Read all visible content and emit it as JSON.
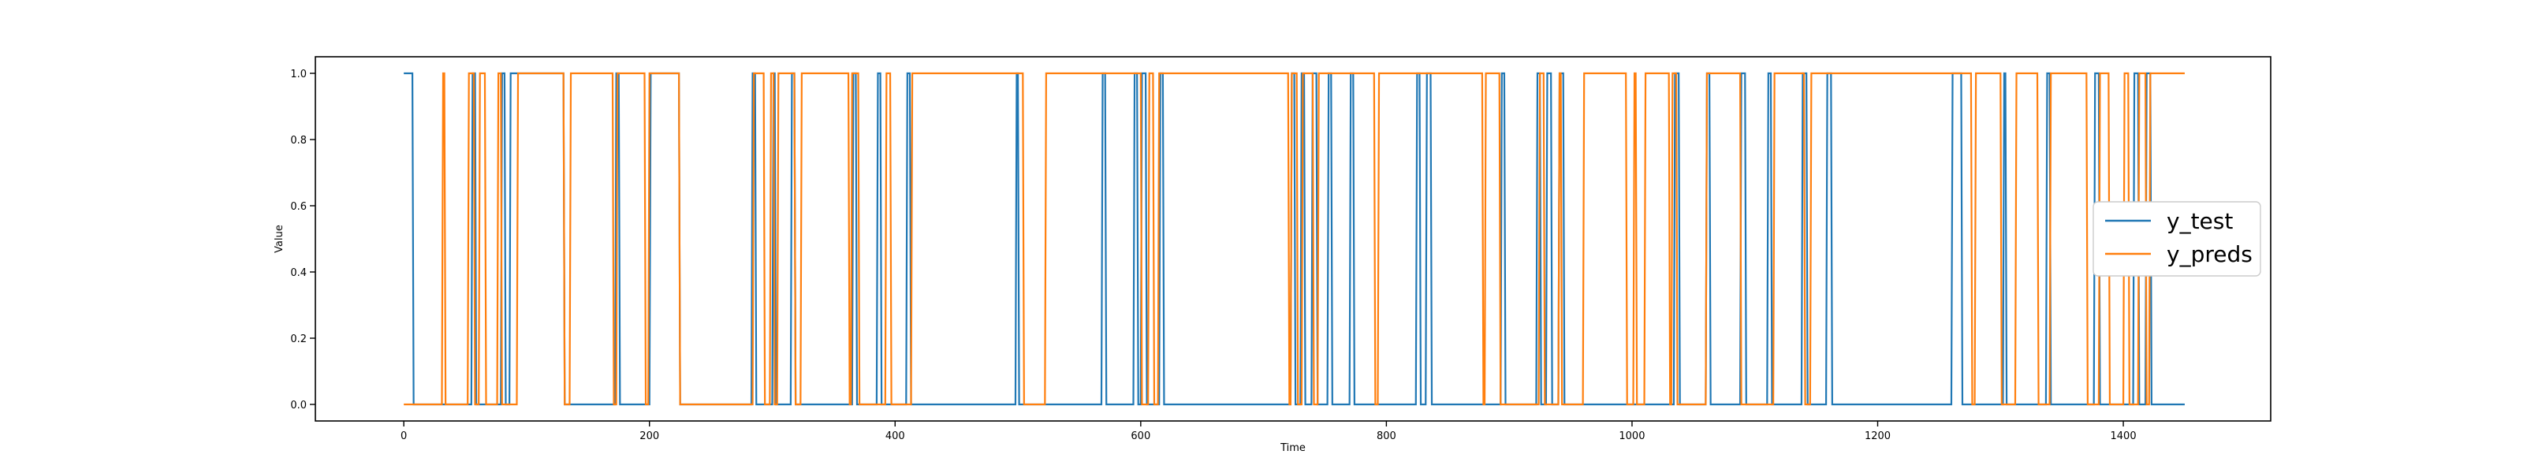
{
  "chart_data": {
    "type": "line",
    "title": "",
    "xlabel": "Time",
    "ylabel": "Value",
    "xlim": [
      -72,
      1520
    ],
    "ylim": [
      -0.05,
      1.05
    ],
    "xticks": [
      0,
      200,
      400,
      600,
      800,
      1000,
      1200,
      1400
    ],
    "yticks": [
      0.0,
      0.2,
      0.4,
      0.6,
      0.8,
      1.0
    ],
    "xtick_labels": [
      "0",
      "200",
      "400",
      "600",
      "800",
      "1000",
      "1200",
      "1400"
    ],
    "ytick_labels": [
      "0.0",
      "0.2",
      "0.4",
      "0.6",
      "0.8",
      "1.0"
    ],
    "grid": false,
    "legend_position": "center-right",
    "colors": {
      "y_test": "#1f77b4",
      "y_preds": "#ff7f0e"
    },
    "x_end": 1450,
    "series": [
      {
        "name": "y_test",
        "color": "#1f77b4",
        "start_value": 1,
        "transitions": [
          7,
          55,
          58,
          79,
          82,
          86,
          130,
          172,
          175,
          200,
          224,
          283,
          286,
          300,
          302,
          315,
          318,
          365,
          368,
          385,
          388,
          409,
          412,
          498,
          500,
          568,
          571,
          594,
          597,
          600,
          604,
          615,
          618,
          722,
          725,
          730,
          733,
          739,
          743,
          752,
          755,
          770,
          773,
          824,
          827,
          832,
          836,
          893,
          896,
          922,
          925,
          930,
          934,
          940,
          944,
          1034,
          1038,
          1060,
          1063,
          1088,
          1092,
          1110,
          1113,
          1138,
          1142,
          1158,
          1162,
          1260,
          1268,
          1302,
          1304,
          1337,
          1340,
          1376,
          1380,
          1408,
          1412,
          1418,
          1422,
          1450
        ]
      },
      {
        "name": "y_preds",
        "color": "#ff7f0e",
        "start_value": 0,
        "transitions": [
          31,
          33,
          52,
          57,
          61,
          66,
          76,
          79,
          92,
          130,
          135,
          170,
          173,
          196,
          199,
          224,
          284,
          293,
          298,
          301,
          304,
          318,
          323,
          362,
          364,
          370,
          392,
          396,
          413,
          504,
          522,
          600,
          606,
          610,
          614,
          720,
          722,
          727,
          731,
          740,
          744,
          790,
          793,
          878,
          880,
          892,
          924,
          928,
          940,
          942,
          960,
          995,
          1001,
          1003,
          1010,
          1030,
          1032,
          1036,
          1060,
          1088,
          1115,
          1140,
          1145,
          1276,
          1279,
          1300,
          1312,
          1330,
          1340,
          1370,
          1380,
          1388,
          1400,
          1404,
          1412,
          1418,
          1421,
          1450
        ]
      }
    ]
  }
}
